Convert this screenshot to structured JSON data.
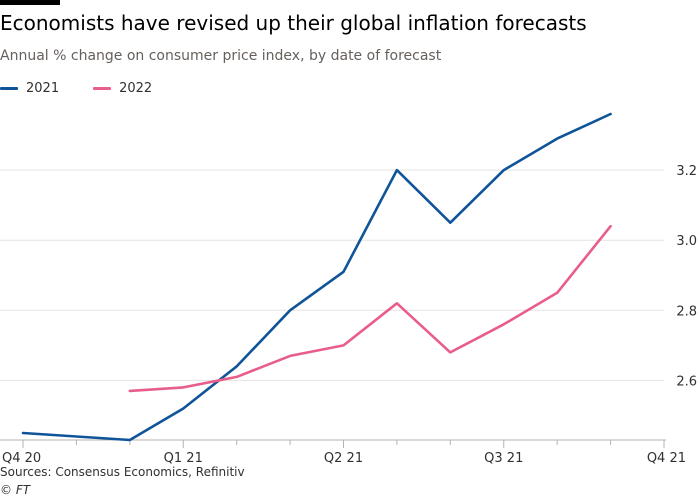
{
  "header": {
    "title": "Economists have revised up their global inflation forecasts",
    "subtitle": "Annual % change on consumer price index, by date of forecast"
  },
  "footer": {
    "source": "Sources: Consensus Economics, Refinitiv",
    "credit": "© FT"
  },
  "colors": {
    "brand_bar": "#000000",
    "grid": "#e6e2dd",
    "axis": "#b8b2ac",
    "text": "#33302e"
  },
  "chart_data": {
    "type": "line",
    "title": "Economists have revised up their global inflation forecasts",
    "subtitle": "Annual % change on consumer price index, by date of forecast",
    "xlabel": "",
    "ylabel": "",
    "x_range": [
      0,
      12
    ],
    "ylim": [
      2.43,
      3.4
    ],
    "y_ticks": [
      2.6,
      2.8,
      3.0,
      3.2
    ],
    "y_tick_labels": [
      "2.6",
      "2.8",
      "3.0",
      "3.2"
    ],
    "y_axis_side": "right",
    "x_ticks": [
      {
        "x": 0,
        "label": "Q4 20"
      },
      {
        "x": 3,
        "label": "Q1 21"
      },
      {
        "x": 6,
        "label": "Q2 21"
      },
      {
        "x": 9,
        "label": "Q3 21"
      },
      {
        "x": 12,
        "label": "Q4 21"
      }
    ],
    "grid": true,
    "legend_position": "top-left",
    "series": [
      {
        "name": "2021",
        "color": "#0f5499",
        "points": [
          {
            "x": 0,
            "y": 2.45
          },
          {
            "x": 2,
            "y": 2.43
          },
          {
            "x": 3,
            "y": 2.52
          },
          {
            "x": 4,
            "y": 2.64
          },
          {
            "x": 5,
            "y": 2.8
          },
          {
            "x": 6,
            "y": 2.91
          },
          {
            "x": 7,
            "y": 3.2
          },
          {
            "x": 8,
            "y": 3.05
          },
          {
            "x": 9,
            "y": 3.2
          },
          {
            "x": 10,
            "y": 3.29
          },
          {
            "x": 11,
            "y": 3.36
          }
        ]
      },
      {
        "name": "2022",
        "color": "#e95d8c",
        "points": [
          {
            "x": 2,
            "y": 2.57
          },
          {
            "x": 3,
            "y": 2.58
          },
          {
            "x": 4,
            "y": 2.61
          },
          {
            "x": 5,
            "y": 2.67
          },
          {
            "x": 6,
            "y": 2.7
          },
          {
            "x": 7,
            "y": 2.82
          },
          {
            "x": 8,
            "y": 2.68
          },
          {
            "x": 9,
            "y": 2.76
          },
          {
            "x": 10,
            "y": 2.85
          },
          {
            "x": 11,
            "y": 3.04
          }
        ]
      }
    ]
  }
}
